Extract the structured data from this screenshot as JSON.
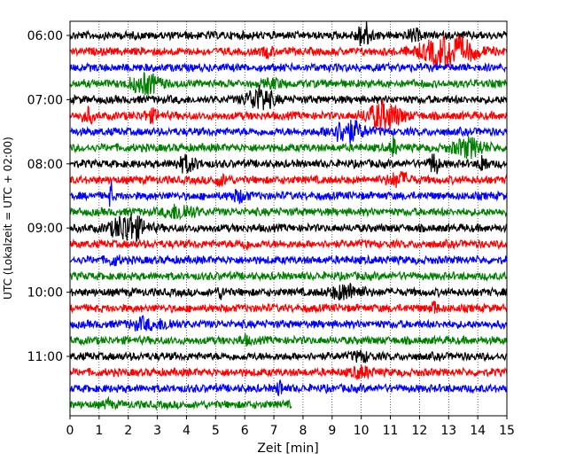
{
  "chart_data": {
    "type": "line",
    "title": "",
    "xlabel": "Zeit  [min]",
    "ylabel": "UTC (Lokalzeit = UTC + 02:00)",
    "xlim": [
      0,
      15
    ],
    "x_ticks": [
      0,
      1,
      2,
      3,
      4,
      5,
      6,
      7,
      8,
      9,
      10,
      11,
      12,
      13,
      14,
      15
    ],
    "x_tick_labels": [
      "0",
      "1",
      "2",
      "3",
      "4",
      "5",
      "6",
      "7",
      "8",
      "9",
      "10",
      "11",
      "12",
      "13",
      "14",
      "15"
    ],
    "y_tick_labels": [
      "06:00",
      "07:00",
      "08:00",
      "09:00",
      "10:00",
      "11:00"
    ],
    "y_tick_trace_index": [
      0,
      4,
      8,
      12,
      16,
      20
    ],
    "grid": "vertical dotted",
    "trace_minutes": 15,
    "trace_count": 24,
    "trace_colors": [
      "#000000",
      "#ff0000",
      "#0000ff",
      "#008000"
    ],
    "last_trace_end_minute": 7.6,
    "events": [
      {
        "trace": 0,
        "minute": 10.1,
        "amplitude": 1.6,
        "width": 0.25
      },
      {
        "trace": 0,
        "minute": 11.8,
        "amplitude": 0.7,
        "width": 0.2
      },
      {
        "trace": 1,
        "minute": 13.0,
        "amplitude": 1.9,
        "width": 0.9
      },
      {
        "trace": 1,
        "minute": 6.8,
        "amplitude": 0.5,
        "width": 0.2
      },
      {
        "trace": 3,
        "minute": 2.6,
        "amplitude": 1.2,
        "width": 0.5
      },
      {
        "trace": 3,
        "minute": 7.0,
        "amplitude": 0.4,
        "width": 0.3
      },
      {
        "trace": 4,
        "minute": 6.5,
        "amplitude": 1.5,
        "width": 0.45
      },
      {
        "trace": 5,
        "minute": 10.8,
        "amplitude": 1.7,
        "width": 0.6
      },
      {
        "trace": 5,
        "minute": 0.6,
        "amplitude": 0.9,
        "width": 0.2
      },
      {
        "trace": 5,
        "minute": 2.8,
        "amplitude": 0.6,
        "width": 0.3
      },
      {
        "trace": 6,
        "minute": 9.5,
        "amplitude": 1.4,
        "width": 0.55
      },
      {
        "trace": 7,
        "minute": 13.7,
        "amplitude": 1.1,
        "width": 0.55
      },
      {
        "trace": 7,
        "minute": 11.1,
        "amplitude": 1.2,
        "width": 0.1
      },
      {
        "trace": 8,
        "minute": 4.0,
        "amplitude": 0.9,
        "width": 0.35
      },
      {
        "trace": 8,
        "minute": 12.5,
        "amplitude": 1.4,
        "width": 0.15
      },
      {
        "trace": 8,
        "minute": 14.2,
        "amplitude": 1.3,
        "width": 0.12
      },
      {
        "trace": 9,
        "minute": 11.3,
        "amplitude": 0.8,
        "width": 0.4
      },
      {
        "trace": 9,
        "minute": 5.2,
        "amplitude": 0.5,
        "width": 0.3
      },
      {
        "trace": 10,
        "minute": 1.4,
        "amplitude": 2.0,
        "width": 0.05
      },
      {
        "trace": 10,
        "minute": 5.8,
        "amplitude": 0.6,
        "width": 0.3
      },
      {
        "trace": 11,
        "minute": 3.8,
        "amplitude": 0.9,
        "width": 0.5
      },
      {
        "trace": 12,
        "minute": 2.0,
        "amplitude": 1.8,
        "width": 0.55
      },
      {
        "trace": 13,
        "minute": 6.0,
        "amplitude": 0.4,
        "width": 0.2
      },
      {
        "trace": 14,
        "minute": 1.5,
        "amplitude": 0.5,
        "width": 0.2
      },
      {
        "trace": 16,
        "minute": 9.5,
        "amplitude": 0.9,
        "width": 0.55
      },
      {
        "trace": 16,
        "minute": 5.2,
        "amplitude": 0.6,
        "width": 0.15
      },
      {
        "trace": 17,
        "minute": 12.5,
        "amplitude": 0.8,
        "width": 0.12
      },
      {
        "trace": 18,
        "minute": 2.5,
        "amplitude": 0.6,
        "width": 0.4
      },
      {
        "trace": 18,
        "minute": 3.3,
        "amplitude": 0.5,
        "width": 0.3
      },
      {
        "trace": 19,
        "minute": 6.0,
        "amplitude": 0.4,
        "width": 0.2
      },
      {
        "trace": 20,
        "minute": 10.0,
        "amplitude": 0.5,
        "width": 0.3
      },
      {
        "trace": 21,
        "minute": 10.0,
        "amplitude": 0.6,
        "width": 0.35
      },
      {
        "trace": 22,
        "minute": 7.2,
        "amplitude": 1.3,
        "width": 0.08
      },
      {
        "trace": 23,
        "minute": 1.3,
        "amplitude": 0.5,
        "width": 0.12
      }
    ]
  }
}
